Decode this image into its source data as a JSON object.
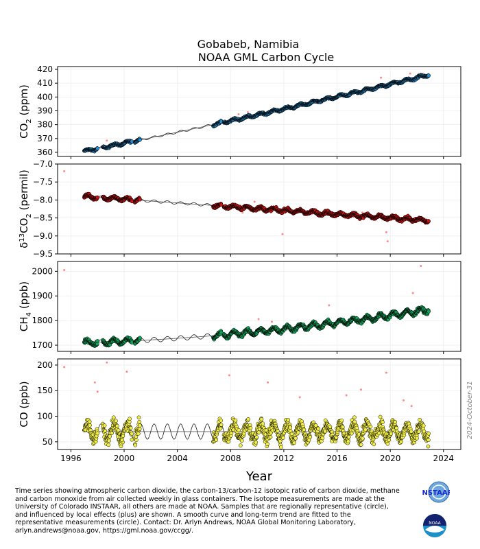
{
  "title": {
    "line1": "Gobabeb, Namibia",
    "line2": "NOAA GML Carbon Cycle"
  },
  "side_date": "2024-October-31",
  "xlabel": "Year",
  "caption": [
    "Time series showing atmospheric carbon dioxide, the carbon-13/carbon-12 isotopic ratio of carbon dioxide, methane",
    "and carbon monoxide from air collected weekly in glass containers.  The isotope measurements are made at the",
    "University of Colorado INSTAAR, all others are made at NOAA.  Samples that are regionally representative (circle),",
    "and influenced by local effects (plus) are shown.  A smooth curve and long-term trend are fitted to the",
    "representative measurements (circle).  Contact:  Dr. Arlyn Andrews, NOAA Global Monitoring Laboratory,",
    "arlyn.andrews@noaa.gov, https://gml.noaa.gov/ccgg/."
  ],
  "logos": {
    "instaar": "INSTAAR",
    "noaa": "NOAA"
  },
  "colors": {
    "co2": "#2a8fd0",
    "d13c": "#c81414",
    "ch4": "#13a05a",
    "co": "#f2ee48",
    "outlier": "#ff8888",
    "curve": "#333333"
  },
  "chart_data": {
    "type": "scatter",
    "x_ticks": [
      "1996",
      "2000",
      "2004",
      "2008",
      "2012",
      "2016",
      "2020",
      "2024"
    ],
    "xlim": [
      1995,
      2025.3
    ],
    "grid": true,
    "panels": [
      {
        "name": "co2",
        "ylabel_main": "CO",
        "ylabel_sub": "2",
        "ylabel_tail": " (ppm)",
        "ylim": [
          357,
          422
        ],
        "yticks": [
          360,
          370,
          380,
          390,
          400,
          410,
          420
        ],
        "ytick_labels": [
          "360",
          "370",
          "380",
          "390",
          "400",
          "410",
          "420"
        ],
        "trend": {
          "a": 360.8,
          "b": 1.9,
          "c": 0.009,
          "seasonal": 0.8,
          "noise": 0.6
        },
        "outlier_points": [
          [
            1998.7,
            368.5
          ],
          [
            2008.6,
            387.5
          ],
          [
            2009.3,
            389.0
          ],
          [
            2011.1,
            391.0
          ],
          [
            2015.5,
            401.0
          ],
          [
            2019.3,
            414.0
          ],
          [
            2021.5,
            417.0
          ]
        ]
      },
      {
        "name": "d13c",
        "ylabel_main": "δ",
        "ylabel_sup": "13",
        "ylabel_tail": "CO",
        "ylabel_sub": "2",
        "ylabel_end": " (permil)",
        "ylim": [
          -9.5,
          -7.0
        ],
        "yticks": [
          -9.5,
          -9.0,
          -8.5,
          -8.0,
          -7.5,
          -7.0
        ],
        "ytick_labels": [
          "−9.5",
          "−9.0",
          "−8.5",
          "−8.0",
          "−7.5",
          "−7.0"
        ],
        "trend": {
          "a": -7.9,
          "b": -0.026,
          "c": 0,
          "seasonal": 0.04,
          "noise": 0.04
        },
        "outlier_points": [
          [
            1995.5,
            -7.2
          ],
          [
            2008.9,
            -8.35
          ],
          [
            2009.8,
            -8.05
          ],
          [
            2011.9,
            -8.95
          ],
          [
            2017.9,
            -8.35
          ],
          [
            2019.7,
            -8.9
          ],
          [
            2019.8,
            -9.15
          ],
          [
            2020.6,
            -8.6
          ]
        ]
      },
      {
        "name": "ch4",
        "ylabel_main": "CH",
        "ylabel_sub": "4",
        "ylabel_tail": " (ppb)",
        "ylim": [
          1675,
          2040
        ],
        "yticks": [
          1700,
          1800,
          1900,
          2000
        ],
        "ytick_labels": [
          "1700",
          "1800",
          "1900",
          "2000"
        ],
        "trend": {
          "a": 1710,
          "b": 1.6,
          "c": 0.14,
          "seasonal": 10,
          "noise": 7
        },
        "outlier_points": [
          [
            1995.5,
            2005
          ],
          [
            2010.1,
            1806
          ],
          [
            2011.1,
            1795
          ],
          [
            2015.4,
            1862
          ],
          [
            2021.7,
            1912
          ],
          [
            2022.3,
            2022
          ]
        ]
      },
      {
        "name": "co",
        "ylabel_main": "CO",
        "ylabel_tail": " (ppb)",
        "ylim": [
          35,
          212
        ],
        "yticks": [
          50,
          100,
          150,
          200
        ],
        "ytick_labels": [
          "50",
          "100",
          "150",
          "200"
        ],
        "trend": {
          "a": 70,
          "b": 0,
          "c": 0,
          "seasonal": 15,
          "noise": 12
        },
        "outlier_points": [
          [
            1995.5,
            196
          ],
          [
            1997.8,
            166
          ],
          [
            1998.0,
            148
          ],
          [
            1998.7,
            205
          ],
          [
            2000.2,
            187
          ],
          [
            2007.9,
            180
          ],
          [
            2010.8,
            166
          ],
          [
            2013.2,
            137
          ],
          [
            2016.7,
            141
          ],
          [
            2017.8,
            152
          ],
          [
            2019.7,
            185
          ],
          [
            2021.0,
            131
          ],
          [
            2021.6,
            120
          ]
        ]
      }
    ],
    "sampling": {
      "segments": [
        [
          1997.0,
          1998.0
        ],
        [
          1998.4,
          1999.9
        ],
        [
          1999.8,
          2000.6
        ],
        [
          2000.8,
          2001.2
        ],
        [
          2006.7,
          2007.3
        ],
        [
          2007.5,
          2022.9
        ]
      ],
      "step_weeks": 1
    }
  }
}
